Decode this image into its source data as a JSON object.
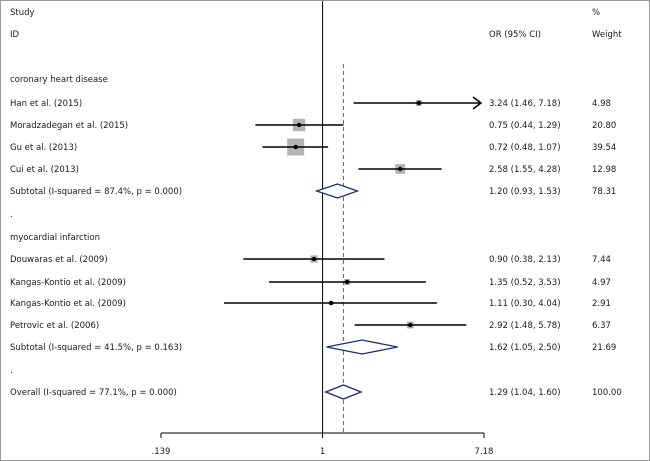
{
  "chart_data": {
    "type": "forest",
    "header": {
      "study_top": "Study",
      "study_bottom": "ID",
      "or_label": "OR (95% CI)",
      "pct_top": "%",
      "pct_bottom": "Weight"
    },
    "x_scale": "log",
    "x_range": [
      0.139,
      7.18
    ],
    "x_ticks": [
      {
        "value": 0.139,
        "label": ".139"
      },
      {
        "value": 1,
        "label": "1"
      },
      {
        "value": 7.18,
        "label": "7.18"
      }
    ],
    "null_line": 1,
    "overall_line": 1.29,
    "rows": [
      {
        "kind": "group",
        "label": "coronary heart disease"
      },
      {
        "kind": "study",
        "label": "Han et al. (2015)",
        "or": 3.24,
        "lo": 1.46,
        "hi": 7.18,
        "arrow": true,
        "ci_text": "3.24 (1.46, 7.18)",
        "weight": 4.98,
        "weight_text": "4.98"
      },
      {
        "kind": "study",
        "label": "Moradzadegan et al. (2015)",
        "or": 0.75,
        "lo": 0.44,
        "hi": 1.29,
        "ci_text": "0.75 (0.44, 1.29)",
        "weight": 20.8,
        "weight_text": "20.80"
      },
      {
        "kind": "study",
        "label": "Gu et al. (2013)",
        "or": 0.72,
        "lo": 0.48,
        "hi": 1.07,
        "ci_text": "0.72 (0.48, 1.07)",
        "weight": 39.54,
        "weight_text": "39.54"
      },
      {
        "kind": "study",
        "label": "Cui et al. (2013)",
        "or": 2.58,
        "lo": 1.55,
        "hi": 4.28,
        "ci_text": "2.58 (1.55, 4.28)",
        "weight": 12.98,
        "weight_text": "12.98"
      },
      {
        "kind": "subtotal",
        "label": "Subtotal  (I-squared = 87.4%, p = 0.000)",
        "or": 1.2,
        "lo": 0.93,
        "hi": 1.53,
        "ci_text": "1.20 (0.93, 1.53)",
        "weight_text": "78.31"
      },
      {
        "kind": "spacer",
        "label": "."
      },
      {
        "kind": "group",
        "label": "myocardial infarction"
      },
      {
        "kind": "study",
        "label": "Douwaras et al. (2009)",
        "or": 0.9,
        "lo": 0.38,
        "hi": 2.13,
        "ci_text": "0.90 (0.38, 2.13)",
        "weight": 7.44,
        "weight_text": "7.44"
      },
      {
        "kind": "study",
        "label": "Kangas-Kontio et al. (2009)",
        "or": 1.35,
        "lo": 0.52,
        "hi": 3.53,
        "ci_text": "1.35 (0.52, 3.53)",
        "weight": 4.97,
        "weight_text": "4.97"
      },
      {
        "kind": "study",
        "label": "Kangas-Kontio et al. (2009)",
        "or": 1.11,
        "lo": 0.3,
        "hi": 4.04,
        "ci_text": "1.11 (0.30, 4.04)",
        "weight": 2.91,
        "weight_text": "2.91"
      },
      {
        "kind": "study",
        "label": "Petrovic et al. (2006)",
        "or": 2.92,
        "lo": 1.48,
        "hi": 5.78,
        "ci_text": "2.92 (1.48, 5.78)",
        "weight": 6.37,
        "weight_text": "6.37"
      },
      {
        "kind": "subtotal",
        "label": "Subtotal  (I-squared = 41.5%, p = 0.163)",
        "or": 1.62,
        "lo": 1.05,
        "hi": 2.5,
        "ci_text": "1.62 (1.05, 2.50)",
        "weight_text": "21.69"
      },
      {
        "kind": "spacer",
        "label": "."
      },
      {
        "kind": "overall",
        "label": "Overall  (I-squared = 77.1%, p = 0.000)",
        "or": 1.29,
        "lo": 1.04,
        "hi": 1.6,
        "ci_text": "1.29 (1.04, 1.60)",
        "weight_text": "100.00"
      }
    ],
    "colors": {
      "text": "#1a1a1a",
      "line": "#000000",
      "box": "#b4b4b4",
      "diamond": "#1f2a7a",
      "overall_line": "#c0394a"
    }
  }
}
